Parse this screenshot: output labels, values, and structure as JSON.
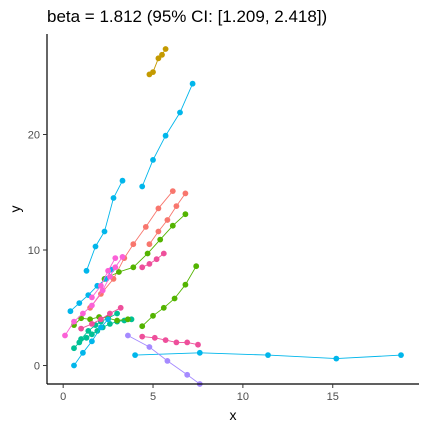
{
  "chart_data": {
    "type": "scatter",
    "title": "beta = 1.812 (95% CI: [1.209, 2.418])",
    "xlabel": "x",
    "ylabel": "y",
    "xlim": [
      -0.9,
      19.8
    ],
    "ylim": [
      -1.6,
      28.7
    ],
    "x_ticks": [
      0,
      5,
      10,
      15
    ],
    "y_ticks": [
      0,
      10,
      20
    ],
    "grid": false,
    "legend": "none",
    "connect_points_within_group": true,
    "series": [
      {
        "color": "#f8766d",
        "points": [
          [
            1.5,
            5.0
          ],
          [
            2.1,
            6.2
          ],
          [
            2.8,
            7.5
          ],
          [
            3.4,
            9.3
          ],
          [
            3.9,
            10.5
          ],
          [
            4.6,
            12.0
          ],
          [
            5.3,
            13.6
          ],
          [
            6.1,
            15.1
          ]
        ]
      },
      {
        "color": "#f8766d",
        "points": [
          [
            4.8,
            10.5
          ],
          [
            5.3,
            11.6
          ],
          [
            5.8,
            12.6
          ],
          [
            6.3,
            13.8
          ],
          [
            6.8,
            14.9
          ]
        ]
      },
      {
        "color": "#c49a00",
        "points": [
          [
            4.8,
            25.2
          ],
          [
            5.0,
            25.4
          ],
          [
            5.3,
            26.6
          ],
          [
            5.5,
            26.9
          ],
          [
            5.7,
            27.4
          ]
        ]
      },
      {
        "color": "#53b400",
        "points": [
          [
            2.3,
            7.5
          ],
          [
            3.1,
            8.1
          ],
          [
            3.9,
            8.5
          ],
          [
            4.7,
            9.7
          ],
          [
            5.4,
            10.9
          ],
          [
            6.1,
            12.1
          ],
          [
            6.8,
            13.1
          ]
        ]
      },
      {
        "color": "#53b400",
        "points": [
          [
            4.4,
            3.4
          ],
          [
            5.0,
            4.3
          ],
          [
            5.6,
            5.0
          ],
          [
            6.2,
            5.8
          ],
          [
            6.8,
            7.0
          ],
          [
            7.4,
            8.6
          ]
        ]
      },
      {
        "color": "#00c094",
        "points": [
          [
            0.6,
            1.5
          ],
          [
            0.9,
            2.0
          ],
          [
            1.3,
            2.4
          ],
          [
            1.6,
            2.7
          ],
          [
            1.9,
            3.0
          ],
          [
            2.2,
            3.3
          ],
          [
            2.6,
            3.6
          ],
          [
            3.0,
            3.8
          ],
          [
            3.4,
            3.9
          ],
          [
            3.8,
            4.0
          ]
        ]
      },
      {
        "color": "#00c094",
        "points": [
          [
            1.0,
            2.3
          ],
          [
            1.4,
            3.0
          ],
          [
            1.8,
            3.5
          ],
          [
            2.1,
            3.8
          ],
          [
            2.5,
            4.1
          ],
          [
            3.0,
            4.5
          ]
        ]
      },
      {
        "color": "#53b400",
        "points": [
          [
            0.6,
            3.5
          ],
          [
            1.0,
            4.1
          ],
          [
            1.5,
            4.0
          ],
          [
            2.0,
            4.2
          ],
          [
            2.5,
            4.1
          ],
          [
            3.0,
            3.9
          ],
          [
            3.6,
            4.0
          ]
        ]
      },
      {
        "color": "#00b6eb",
        "points": [
          [
            1.3,
            8.2
          ],
          [
            1.8,
            10.3
          ],
          [
            2.3,
            11.6
          ],
          [
            2.8,
            14.5
          ],
          [
            3.3,
            16.0
          ]
        ]
      },
      {
        "color": "#00b6eb",
        "points": [
          [
            4.4,
            15.5
          ],
          [
            5.0,
            17.8
          ],
          [
            5.7,
            19.9
          ],
          [
            6.5,
            21.9
          ],
          [
            7.2,
            24.4
          ]
        ]
      },
      {
        "color": "#00b6eb",
        "points": [
          [
            0.6,
            0.0
          ],
          [
            1.1,
            1.1
          ],
          [
            1.6,
            2.1
          ],
          [
            2.1,
            3.3
          ],
          [
            2.5,
            4.0
          ]
        ]
      },
      {
        "color": "#00b6eb",
        "points": [
          [
            0.4,
            4.7
          ],
          [
            0.9,
            5.4
          ],
          [
            1.4,
            6.1
          ],
          [
            1.9,
            6.9
          ],
          [
            2.4,
            7.5
          ],
          [
            2.7,
            8.3
          ]
        ]
      },
      {
        "color": "#00b6eb",
        "points": [
          [
            4.0,
            0.9
          ],
          [
            7.6,
            1.1
          ],
          [
            11.4,
            0.9
          ],
          [
            15.2,
            0.6
          ],
          [
            18.8,
            0.9
          ]
        ]
      },
      {
        "color": "#a58aff",
        "points": [
          [
            3.6,
            2.6
          ],
          [
            4.8,
            1.6
          ],
          [
            5.8,
            0.4
          ],
          [
            6.9,
            -0.8
          ],
          [
            7.6,
            -1.6
          ]
        ]
      },
      {
        "color": "#fb61d7",
        "points": [
          [
            0.1,
            2.6
          ],
          [
            0.6,
            3.8
          ],
          [
            1.1,
            4.5
          ],
          [
            1.6,
            5.2
          ],
          [
            2.2,
            6.5
          ],
          [
            2.6,
            7.7
          ],
          [
            2.9,
            8.5
          ],
          [
            3.3,
            9.4
          ]
        ]
      },
      {
        "color": "#fb61d7",
        "points": [
          [
            1.6,
            5.9
          ],
          [
            2.1,
            6.9
          ],
          [
            2.5,
            8.2
          ],
          [
            2.9,
            9.3
          ]
        ]
      },
      {
        "color": "#ee4f9b",
        "points": [
          [
            4.4,
            2.5
          ],
          [
            5.1,
            2.4
          ],
          [
            5.7,
            2.2
          ],
          [
            6.3,
            2.0
          ],
          [
            6.9,
            2.0
          ],
          [
            7.5,
            1.8
          ]
        ]
      },
      {
        "color": "#ee4f9b",
        "points": [
          [
            4.4,
            8.5
          ],
          [
            4.8,
            8.8
          ],
          [
            5.2,
            9.2
          ],
          [
            5.6,
            9.7
          ]
        ]
      },
      {
        "color": "#ee4f9b",
        "points": [
          [
            1.0,
            3.2
          ],
          [
            1.6,
            3.6
          ],
          [
            2.1,
            4.0
          ],
          [
            2.6,
            4.5
          ],
          [
            3.2,
            5.0
          ]
        ]
      }
    ]
  }
}
